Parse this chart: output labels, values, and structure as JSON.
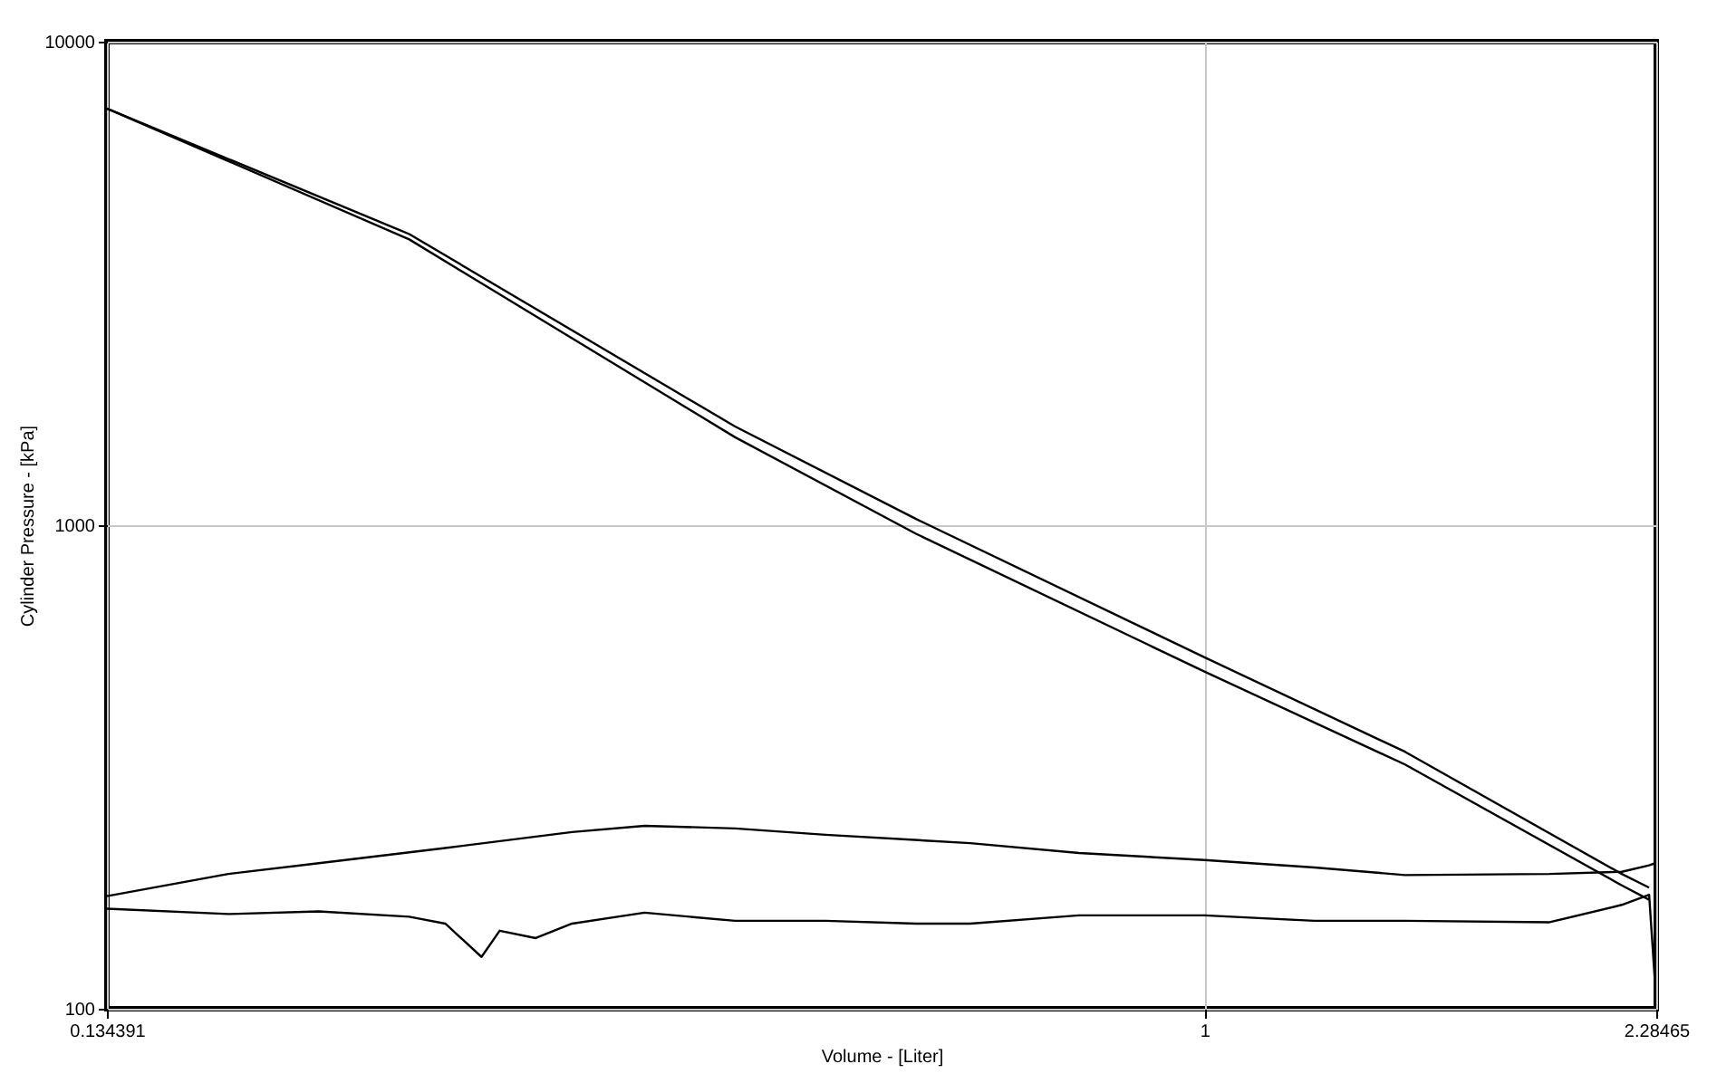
{
  "chart_data": {
    "type": "line",
    "xlabel": "Volume - [Liter]",
    "ylabel": "Cylinder Pressure - [kPa]",
    "log": "xy",
    "grid": true,
    "line_style": "solid",
    "marker": "none",
    "xlim": [
      0.134391,
      2.28465
    ],
    "xticks": [
      0.134391,
      1,
      2.28465
    ],
    "ylim": [
      100,
      10000
    ],
    "yticks": [
      100,
      1000,
      10000
    ],
    "series": [
      {
        "color": "#000000",
        "x": [
          0.1344,
          0.2336,
          0.4239,
          0.5902,
          1,
          1.443,
          2.145,
          2.255
        ],
        "values": [
          7270,
          4000,
          1600,
          1030,
          533,
          340,
          190,
          178
        ]
      },
      {
        "color": "#000000",
        "x": [
          0.1344,
          0.2336,
          0.4239,
          0.5902,
          1,
          1.443,
          2.145,
          2.255
        ],
        "values": [
          7270,
          3900,
          1520,
          960,
          498,
          320,
          180,
          168
        ]
      },
      {
        "color": "#000000",
        "x": [
          0.1344,
          0.1678,
          0.198,
          0.2495,
          0.3146,
          0.3592,
          0.4239,
          0.5,
          0.6516,
          0.795,
          1,
          1.223,
          1.443,
          1.88,
          2.145,
          2.255,
          2.28
        ],
        "values": [
          171,
          190,
          200,
          215,
          232,
          239,
          236,
          229,
          220,
          210,
          203,
          196,
          189,
          190,
          192,
          198,
          200
        ]
      },
      {
        "color": "#000000",
        "x": [
          0.1344,
          0.1678,
          0.198,
          0.2336,
          0.2495,
          0.2666,
          0.2756,
          0.2944,
          0.3146,
          0.3592,
          0.4239,
          0.5,
          0.5902,
          0.6516,
          0.795,
          1,
          1.223,
          1.443,
          1.88,
          2.145,
          2.255,
          2.28
        ],
        "values": [
          161,
          157,
          159,
          155,
          150,
          128,
          145,
          140,
          150,
          158,
          152,
          152,
          150,
          150,
          156,
          156,
          152,
          152,
          151,
          164,
          172,
          112
        ]
      }
    ]
  }
}
